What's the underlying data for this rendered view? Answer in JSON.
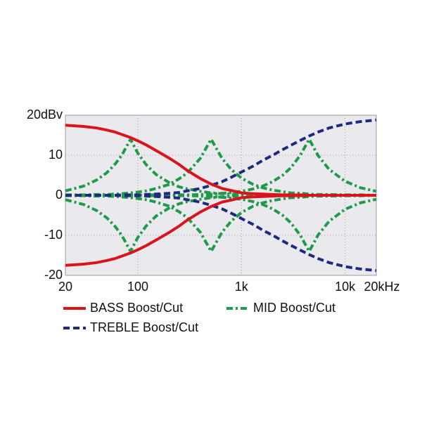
{
  "chart_data": {
    "type": "line",
    "x": [
      20,
      30,
      40,
      50,
      60,
      70,
      85,
      100,
      120,
      150,
      200,
      250,
      300,
      400,
      510,
      650,
      800,
      1000,
      1300,
      1600,
      2000,
      2500,
      3000,
      3700,
      4500,
      5500,
      7000,
      10000,
      14000,
      20000
    ],
    "xlog": true,
    "xlim": [
      20,
      20000
    ],
    "xticks": [
      20,
      100,
      {
        "value": 1000,
        "label": "1k"
      },
      {
        "value": 10000,
        "label": "10k"
      },
      {
        "value": 20000,
        "label": "20kHz"
      }
    ],
    "ylim": [
      -20,
      20
    ],
    "yticks": [
      -20,
      -10,
      0,
      10,
      {
        "value": 20,
        "label": "20dBv"
      }
    ],
    "grid": true,
    "series": [
      {
        "name": "MID Boost/Cut",
        "color": "#1e9a4a",
        "dash": "dashdot",
        "values": [
          [
            1.1,
            2.3,
            3.8,
            5.6,
            7.7,
            10.0,
            14,
            10.5,
            7.7,
            5.2,
            3.2,
            2.1,
            1.6,
            1.0,
            0.6,
            0.4,
            0.3,
            0.2,
            0.1,
            0.1,
            0.1,
            0,
            0,
            0,
            0,
            0,
            0,
            0,
            0,
            0
          ],
          [
            -1.1,
            -2.3,
            -3.8,
            -5.6,
            -7.7,
            -10.0,
            -14,
            -10.5,
            -7.7,
            -5.2,
            -3.2,
            -2.1,
            -1.6,
            -1.0,
            -0.6,
            -0.4,
            -0.3,
            -0.2,
            -0.1,
            -0.1,
            -0.1,
            0,
            0,
            0,
            0,
            0,
            0,
            0,
            0,
            0
          ],
          [
            0.1,
            0.1,
            0.2,
            0.2,
            0.3,
            0.4,
            0.6,
            0.8,
            1.1,
            1.7,
            2.7,
            4.1,
            5.6,
            9.2,
            14,
            9.2,
            6.4,
            4.3,
            2.7,
            1.9,
            1.3,
            0.9,
            0.6,
            0.5,
            0.3,
            0.2,
            0.2,
            0.1,
            0.1,
            0
          ],
          [
            -0.1,
            -0.1,
            -0.2,
            -0.2,
            -0.3,
            -0.4,
            -0.6,
            -0.8,
            -1.1,
            -1.7,
            -2.7,
            -4.1,
            -5.6,
            -9.2,
            -14,
            -9.2,
            -6.4,
            -4.3,
            -2.7,
            -1.9,
            -1.3,
            -0.9,
            -0.6,
            -0.5,
            -0.3,
            -0.2,
            -0.2,
            -0.1,
            -0.1,
            0
          ],
          [
            0,
            0,
            0,
            0,
            0,
            0,
            0,
            0,
            0.1,
            0.1,
            0.1,
            0.1,
            0.1,
            0.2,
            0.3,
            0.5,
            0.7,
            1.0,
            1.6,
            2.3,
            3.4,
            5.0,
            6.9,
            10.0,
            14,
            9.9,
            6.5,
            3.5,
            1.9,
            1.0
          ],
          [
            0,
            0,
            0,
            0,
            0,
            0,
            0,
            0,
            -0.1,
            -0.1,
            -0.1,
            -0.1,
            -0.1,
            -0.2,
            -0.3,
            -0.5,
            -0.7,
            -1.0,
            -1.6,
            -2.3,
            -3.4,
            -5.0,
            -6.9,
            -10.0,
            -14,
            -9.9,
            -6.5,
            -3.5,
            -1.9,
            -1.0
          ]
        ]
      },
      {
        "name": "TREBLE Boost/Cut",
        "color": "#1f2a7e",
        "dash": "dashed",
        "values": [
          [
            0,
            0,
            0,
            0,
            0,
            0.1,
            0.1,
            0.1,
            0.2,
            0.3,
            0.5,
            0.7,
            1.1,
            1.7,
            2.5,
            3.4,
            4.5,
            5.8,
            7.3,
            8.7,
            10,
            11.4,
            12.5,
            13.7,
            14.8,
            15.8,
            16.8,
            17.8,
            18.4,
            18.8
          ],
          [
            0,
            0,
            0,
            0,
            0,
            -0.1,
            -0.1,
            -0.1,
            -0.2,
            -0.3,
            -0.5,
            -0.7,
            -1.1,
            -1.7,
            -2.5,
            -3.4,
            -4.5,
            -5.8,
            -7.3,
            -8.7,
            -10,
            -11.4,
            -12.5,
            -13.7,
            -14.8,
            -15.8,
            -16.8,
            -17.8,
            -18.4,
            -18.8
          ]
        ]
      },
      {
        "name": "BASS Boost/Cut",
        "color": "#d9141c",
        "dash": "solid",
        "values": [
          [
            17.5,
            17.2,
            16.8,
            16.3,
            15.8,
            15.2,
            14.4,
            13.6,
            12.6,
            11.2,
            9.3,
            7.7,
            6.2,
            4.2,
            2.8,
            1.7,
            1.2,
            0.6,
            0.4,
            0.3,
            0.2,
            0.1,
            0.1,
            0.1,
            0,
            0,
            0,
            0,
            0,
            0
          ],
          [
            -17.5,
            -17.2,
            -16.8,
            -16.3,
            -15.8,
            -15.2,
            -14.4,
            -13.6,
            -12.6,
            -11.2,
            -9.3,
            -7.7,
            -6.2,
            -4.2,
            -2.8,
            -1.7,
            -1.2,
            -0.6,
            -0.4,
            -0.3,
            -0.2,
            -0.1,
            -0.1,
            -0.1,
            0,
            0,
            0,
            0,
            0,
            0
          ]
        ]
      }
    ]
  }
}
